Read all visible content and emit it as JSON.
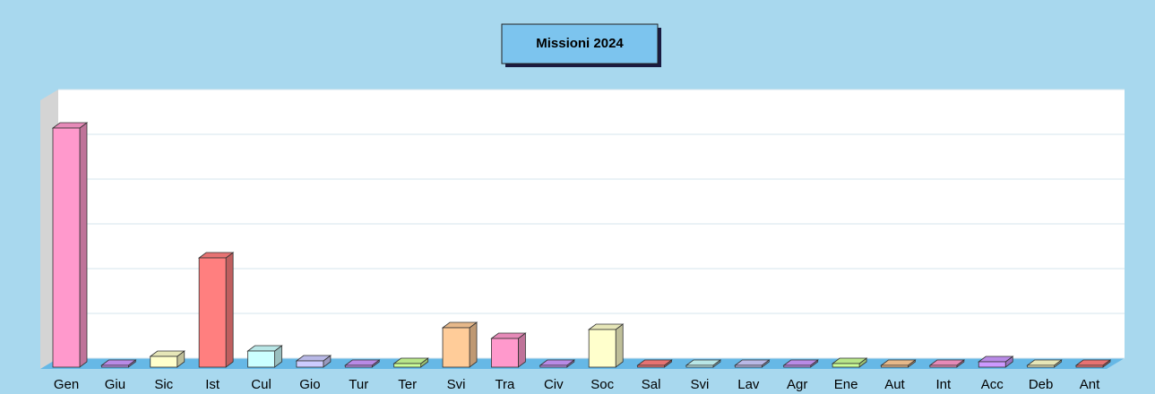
{
  "chart_data": {
    "type": "bar3d",
    "title": "Missioni 2024",
    "categories": [
      "Gen",
      "Giu",
      "Sic",
      "Ist",
      "Cul",
      "Gio",
      "Tur",
      "Ter",
      "Svi",
      "Tra",
      "Civ",
      "Soc",
      "Sal",
      "Svi",
      "Lav",
      "Agr",
      "Ene",
      "Aut",
      "Int",
      "Acc",
      "Deb",
      "Ant"
    ],
    "values": [
      5.34,
      0.02,
      0.24,
      2.44,
      0.36,
      0.14,
      0.02,
      0.08,
      0.88,
      0.64,
      0.04,
      0.84,
      0.02,
      0.02,
      0.02,
      0.02,
      0.08,
      0.02,
      0.02,
      0.12,
      0.02,
      0.04
    ],
    "colors": [
      "#ff99cc",
      "#cc99ff",
      "#ffffcc",
      "#ff7f7f",
      "#ccffff",
      "#ccccff",
      "#cc99ff",
      "#ccff99",
      "#ffcc99",
      "#ff99cc",
      "#cc99ff",
      "#ffffcc",
      "#ff7f7f",
      "#ccffff",
      "#ccccff",
      "#cc99ff",
      "#ccff99",
      "#ffcc99",
      "#ff99cc",
      "#cc99ff",
      "#ffffcc",
      "#ff7f7f"
    ],
    "ylim": [
      0,
      6
    ],
    "yticks": [
      0,
      1,
      2,
      3,
      4,
      5,
      6
    ],
    "grid": true
  }
}
